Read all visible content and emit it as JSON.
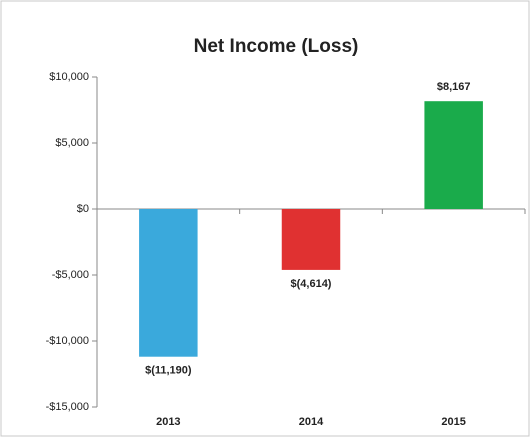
{
  "chart_data": {
    "type": "bar",
    "title": "Net Income (Loss)",
    "categories": [
      "2013",
      "2014",
      "2015"
    ],
    "values": [
      -11190,
      -4614,
      8167
    ],
    "value_labels": [
      "$(11,190)",
      "$(4,614)",
      "$8,167"
    ],
    "colors": [
      "#3aa9dc",
      "#e03131",
      "#1aab4b"
    ],
    "ylim": [
      -15000,
      10000
    ],
    "yticks": [
      {
        "value": -15000,
        "label": "-$15,000"
      },
      {
        "value": -10000,
        "label": "-$10,000"
      },
      {
        "value": -5000,
        "label": "-$5,000"
      },
      {
        "value": 0,
        "label": "$0"
      },
      {
        "value": 5000,
        "label": "$5,000"
      },
      {
        "value": 10000,
        "label": "$10,000"
      }
    ],
    "grid": false
  }
}
